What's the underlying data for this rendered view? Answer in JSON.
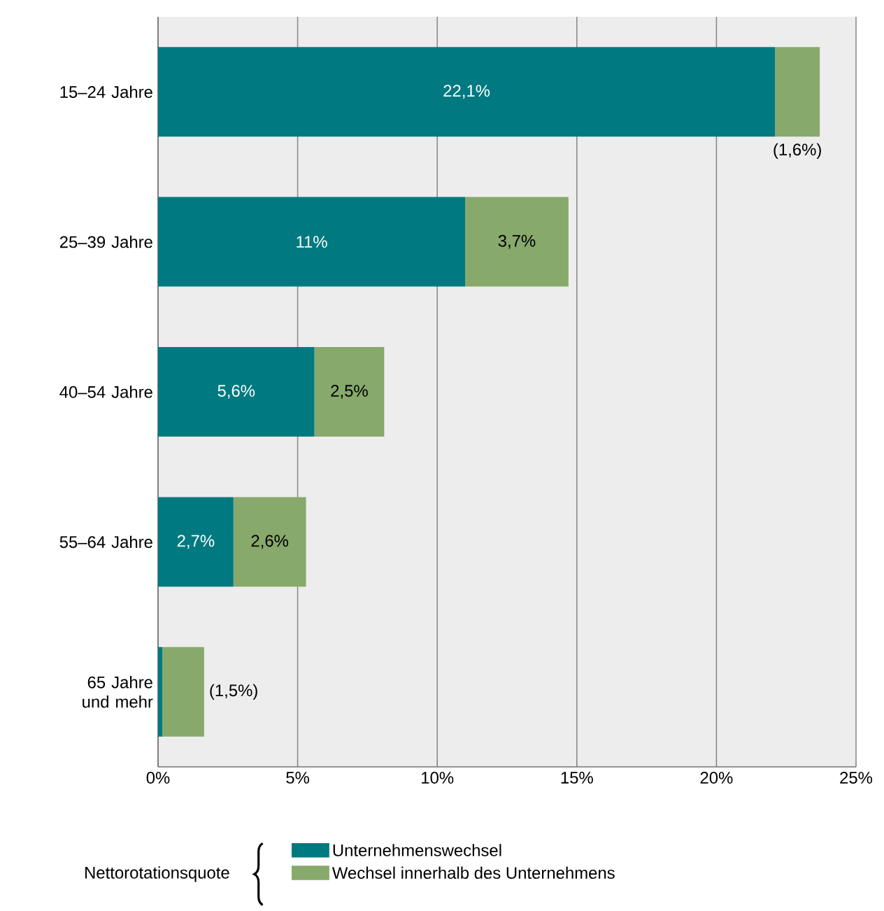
{
  "chart_data": {
    "type": "bar",
    "orientation": "horizontal",
    "stacked": true,
    "categories": [
      "15–24 Jahre",
      "25–39 Jahre",
      "40–54 Jahre",
      "55–64 Jahre",
      "65 Jahre und mehr"
    ],
    "series": [
      {
        "name": "Unternehmenswechsel",
        "color": "#007a80",
        "values": [
          22.1,
          11,
          5.6,
          2.7,
          0.15
        ],
        "value_labels": [
          "22,1%",
          "11%",
          "5,6%",
          "2,7%",
          null
        ]
      },
      {
        "name": "Wechsel innerhalb des Unternehmens",
        "color": "#87a96b",
        "values": [
          1.6,
          3.7,
          2.5,
          2.6,
          1.5
        ],
        "value_labels": [
          "(1,6%)",
          "3,7%",
          "2,5%",
          "2,6%",
          "(1,5%)"
        ]
      }
    ],
    "xlim": [
      0,
      25
    ],
    "xticks": [
      {
        "value": 0,
        "label": "0%"
      },
      {
        "value": 5,
        "label": "5%"
      },
      {
        "value": 10,
        "label": "10%"
      },
      {
        "value": 15,
        "label": "15%"
      },
      {
        "value": 20,
        "label": "20%"
      },
      {
        "value": 25,
        "label": "25%"
      }
    ],
    "grid": "x",
    "legend": "bottom",
    "legend_title": "Nettorotationsquote"
  }
}
